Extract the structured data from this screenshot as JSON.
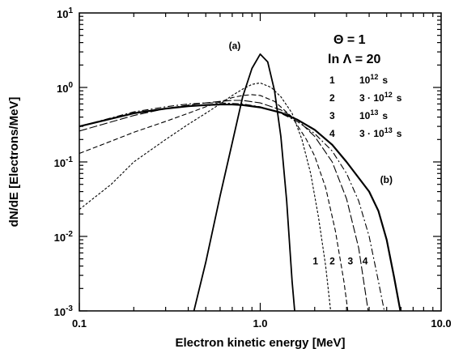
{
  "chart_data": {
    "type": "line",
    "xlabel": "Electron kinetic energy [MeV]",
    "ylabel": "dN/dE [Electrons/MeV]",
    "xscale": "log",
    "yscale": "log",
    "xlim": [
      0.1,
      10.0
    ],
    "ylim": [
      0.001,
      10
    ],
    "x_ticks": [
      {
        "value": 0.1,
        "label": "0.1"
      },
      {
        "value": 1.0,
        "label": "1.0"
      },
      {
        "value": 10.0,
        "label": "10.0"
      }
    ],
    "y_ticks": [
      {
        "value": 0.001,
        "base": "10",
        "exp": "-3"
      },
      {
        "value": 0.01,
        "base": "10",
        "exp": "-2"
      },
      {
        "value": 0.1,
        "base": "10",
        "exp": "-1"
      },
      {
        "value": 1,
        "base": "10",
        "exp": "0"
      },
      {
        "value": 10,
        "base": "10",
        "exp": "1"
      }
    ],
    "grid": false,
    "legend_position": "top-right",
    "params": [
      {
        "line": "Θ = 1"
      },
      {
        "line": "ln Λ = 20"
      }
    ],
    "legend": [
      {
        "num": "1",
        "base": "10",
        "exp": "12",
        "unit": "s",
        "factor": ""
      },
      {
        "num": "2",
        "base": "10",
        "exp": "12",
        "unit": "s",
        "factor": "3 · "
      },
      {
        "num": "3",
        "base": "10",
        "exp": "13",
        "unit": "s",
        "factor": ""
      },
      {
        "num": "4",
        "base": "10",
        "exp": "13",
        "unit": "s",
        "factor": "3 · "
      }
    ],
    "annotations": [
      {
        "text": "(a)",
        "x": 0.67,
        "y": 3.3
      },
      {
        "text": "(b)",
        "x": 4.6,
        "y": 0.052
      }
    ],
    "end_labels": [
      {
        "text": "1",
        "x": 2.02,
        "y": 0.0042
      },
      {
        "text": "2",
        "x": 2.5,
        "y": 0.0042
      },
      {
        "text": "3",
        "x": 3.15,
        "y": 0.0042
      },
      {
        "text": "4",
        "x": 3.8,
        "y": 0.0042
      }
    ],
    "series": [
      {
        "style": "solid",
        "points": [
          [
            0.43,
            0.001
          ],
          [
            0.5,
            0.0045
          ],
          [
            0.6,
            0.035
          ],
          [
            0.7,
            0.18
          ],
          [
            0.8,
            0.75
          ],
          [
            0.9,
            1.8
          ],
          [
            1.0,
            2.8
          ],
          [
            1.1,
            2.2
          ],
          [
            1.2,
            0.9
          ],
          [
            1.3,
            0.22
          ],
          [
            1.4,
            0.03
          ],
          [
            1.5,
            0.0025
          ],
          [
            1.55,
            0.001
          ]
        ]
      },
      {
        "style": "shortdash",
        "points": [
          [
            0.1,
            0.023
          ],
          [
            0.15,
            0.05
          ],
          [
            0.2,
            0.1
          ],
          [
            0.3,
            0.2
          ],
          [
            0.4,
            0.32
          ],
          [
            0.5,
            0.45
          ],
          [
            0.6,
            0.6
          ],
          [
            0.7,
            0.78
          ],
          [
            0.8,
            0.95
          ],
          [
            0.9,
            1.1
          ],
          [
            1.0,
            1.15
          ],
          [
            1.15,
            1.0
          ],
          [
            1.3,
            0.75
          ],
          [
            1.5,
            0.45
          ],
          [
            1.7,
            0.2
          ],
          [
            1.9,
            0.07
          ],
          [
            2.1,
            0.018
          ],
          [
            2.3,
            0.004
          ],
          [
            2.45,
            0.001
          ]
        ]
      },
      {
        "style": "dash",
        "points": [
          [
            0.1,
            0.13
          ],
          [
            0.15,
            0.19
          ],
          [
            0.2,
            0.25
          ],
          [
            0.3,
            0.35
          ],
          [
            0.4,
            0.45
          ],
          [
            0.5,
            0.55
          ],
          [
            0.6,
            0.64
          ],
          [
            0.7,
            0.73
          ],
          [
            0.8,
            0.78
          ],
          [
            0.9,
            0.8
          ],
          [
            1.0,
            0.78
          ],
          [
            1.2,
            0.65
          ],
          [
            1.5,
            0.4
          ],
          [
            1.8,
            0.2
          ],
          [
            2.0,
            0.12
          ],
          [
            2.3,
            0.045
          ],
          [
            2.6,
            0.012
          ],
          [
            2.9,
            0.0025
          ],
          [
            3.05,
            0.001
          ]
        ]
      },
      {
        "style": "longdash",
        "points": [
          [
            0.1,
            0.26
          ],
          [
            0.2,
            0.42
          ],
          [
            0.3,
            0.52
          ],
          [
            0.4,
            0.58
          ],
          [
            0.5,
            0.62
          ],
          [
            0.6,
            0.65
          ],
          [
            0.7,
            0.67
          ],
          [
            0.8,
            0.67
          ],
          [
            1.0,
            0.62
          ],
          [
            1.3,
            0.5
          ],
          [
            1.6,
            0.37
          ],
          [
            2.0,
            0.22
          ],
          [
            2.5,
            0.1
          ],
          [
            3.0,
            0.032
          ],
          [
            3.5,
            0.007
          ],
          [
            3.95,
            0.001
          ]
        ]
      },
      {
        "style": "dashdot",
        "points": [
          [
            0.1,
            0.3
          ],
          [
            0.2,
            0.47
          ],
          [
            0.3,
            0.55
          ],
          [
            0.4,
            0.6
          ],
          [
            0.5,
            0.62
          ],
          [
            0.6,
            0.62
          ],
          [
            0.7,
            0.61
          ],
          [
            0.8,
            0.6
          ],
          [
            1.0,
            0.55
          ],
          [
            1.3,
            0.45
          ],
          [
            1.6,
            0.35
          ],
          [
            2.0,
            0.24
          ],
          [
            2.5,
            0.14
          ],
          [
            3.0,
            0.07
          ],
          [
            3.5,
            0.03
          ],
          [
            4.0,
            0.01
          ],
          [
            4.5,
            0.0025
          ],
          [
            4.85,
            0.001
          ]
        ]
      },
      {
        "style": "thicksolid",
        "points": [
          [
            0.1,
            0.3
          ],
          [
            0.2,
            0.45
          ],
          [
            0.3,
            0.52
          ],
          [
            0.4,
            0.56
          ],
          [
            0.5,
            0.58
          ],
          [
            0.6,
            0.59
          ],
          [
            0.7,
            0.59
          ],
          [
            0.8,
            0.58
          ],
          [
            1.0,
            0.54
          ],
          [
            1.3,
            0.46
          ],
          [
            1.6,
            0.37
          ],
          [
            2.0,
            0.27
          ],
          [
            2.5,
            0.17
          ],
          [
            3.0,
            0.1
          ],
          [
            4.0,
            0.04
          ],
          [
            4.5,
            0.022
          ],
          [
            5.0,
            0.009
          ],
          [
            5.5,
            0.0028
          ],
          [
            5.95,
            0.001
          ]
        ]
      }
    ]
  }
}
